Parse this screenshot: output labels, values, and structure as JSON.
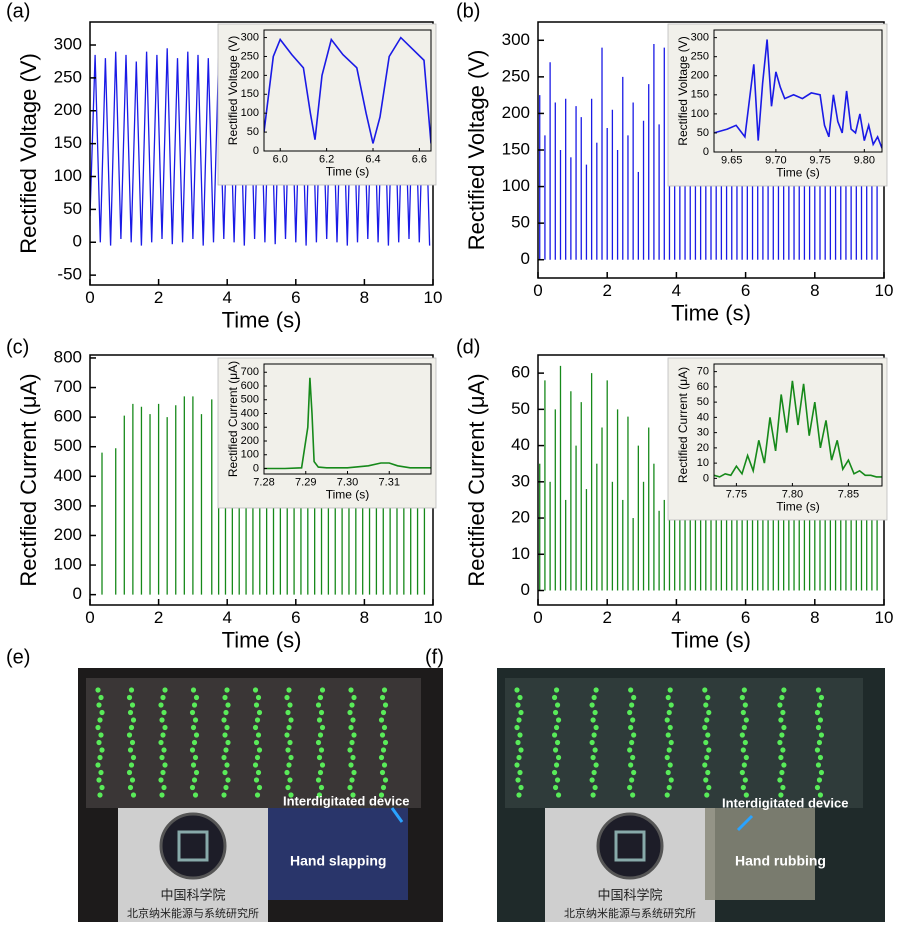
{
  "chart_data": [
    {
      "type": "line",
      "title": "(a)",
      "x_label": "Time (s)",
      "y_label": "Rectified Voltage (V)",
      "color": "#1a1ae6",
      "xlim": [
        0,
        10
      ],
      "ylim": [
        -65,
        335
      ],
      "xticks": [
        0,
        2,
        4,
        6,
        8,
        10
      ],
      "yticks": [
        -50,
        0,
        50,
        100,
        150,
        200,
        250,
        300
      ],
      "x": [
        0,
        0.15,
        0.3,
        0.45,
        0.6,
        0.75,
        0.9,
        1.05,
        1.2,
        1.35,
        1.5,
        1.65,
        1.8,
        1.95,
        2.1,
        2.25,
        2.4,
        2.55,
        2.7,
        2.85,
        3.0,
        3.15,
        3.3,
        3.45,
        3.6,
        3.75,
        3.9,
        4.05,
        4.2,
        4.35,
        4.5,
        4.65,
        4.8,
        4.95,
        5.1,
        5.25,
        5.4,
        5.55,
        5.7,
        5.85,
        6.0,
        6.15,
        6.3,
        6.45,
        6.6,
        6.75,
        6.9,
        7.05,
        7.2,
        7.35,
        7.5,
        7.65,
        7.8,
        7.95,
        8.1,
        8.25,
        8.4,
        8.55,
        8.7,
        8.85,
        9.0,
        9.15,
        9.3,
        9.45,
        9.6,
        9.75,
        9.9
      ],
      "values": [
        40,
        285,
        0,
        280,
        -5,
        290,
        5,
        285,
        0,
        275,
        -5,
        290,
        0,
        285,
        5,
        295,
        -3,
        280,
        0,
        290,
        5,
        285,
        -5,
        280,
        0,
        280,
        5,
        285,
        0,
        280,
        -5,
        285,
        5,
        280,
        0,
        285,
        -3,
        280,
        5,
        285,
        0,
        280,
        -5,
        285,
        0,
        280,
        5,
        285,
        0,
        280,
        -5,
        285,
        0,
        280,
        5,
        285,
        0,
        280,
        -5,
        285,
        0,
        280,
        5,
        285,
        0,
        280,
        -5
      ],
      "inset": {
        "type": "line",
        "x_label": "Time (s)",
        "y_label": "Rectified Voltage (V)",
        "color": "#1a1ae6",
        "xlim": [
          5.93,
          6.65
        ],
        "ylim": [
          0,
          320
        ],
        "xticks": [
          {
            "value": 6,
            "label": "6.0"
          },
          6.2,
          6.4,
          6.6
        ],
        "yticks": [
          0,
          50,
          100,
          150,
          200,
          250,
          300
        ],
        "x": [
          5.93,
          5.97,
          6.0,
          6.05,
          6.1,
          6.13,
          6.15,
          6.18,
          6.22,
          6.27,
          6.33,
          6.37,
          6.4,
          6.43,
          6.47,
          6.52,
          6.57,
          6.62,
          6.65
        ],
        "values": [
          50,
          250,
          295,
          255,
          220,
          100,
          30,
          200,
          295,
          255,
          220,
          100,
          20,
          90,
          250,
          300,
          270,
          240,
          20
        ]
      }
    },
    {
      "type": "stem",
      "title": "(b)",
      "x_label": "Time (s)",
      "y_label": "Rectified Voltage (V)",
      "color": "#1a1ae6",
      "xlim": [
        0,
        10
      ],
      "ylim": [
        -25,
        325
      ],
      "xticks": [
        0,
        2,
        4,
        6,
        8,
        10
      ],
      "yticks": [
        0,
        50,
        100,
        150,
        200,
        250,
        300
      ],
      "x": [
        0.05,
        0.2,
        0.35,
        0.5,
        0.65,
        0.8,
        0.95,
        1.1,
        1.25,
        1.4,
        1.55,
        1.7,
        1.85,
        2.0,
        2.15,
        2.3,
        2.45,
        2.6,
        2.75,
        2.9,
        3.05,
        3.2,
        3.35,
        3.5,
        3.65,
        3.8,
        3.95,
        4.1,
        4.25,
        4.4,
        4.55,
        4.7,
        4.85,
        5.0,
        5.15,
        5.3,
        5.45,
        5.6,
        5.75,
        5.9,
        6.05,
        6.2,
        6.35,
        6.5,
        6.65,
        6.8,
        6.95,
        7.1,
        7.25,
        7.4,
        7.55,
        7.7,
        7.85,
        8.0,
        8.15,
        8.3,
        8.45,
        8.6,
        8.75,
        8.9,
        9.05,
        9.2,
        9.35,
        9.5,
        9.65,
        9.8
      ],
      "values": [
        225,
        170,
        270,
        215,
        150,
        220,
        140,
        210,
        195,
        130,
        220,
        160,
        290,
        180,
        205,
        150,
        250,
        170,
        215,
        120,
        190,
        240,
        295,
        185,
        290,
        180,
        150,
        200,
        170,
        190,
        160,
        210,
        175,
        185,
        150,
        200,
        170,
        190,
        165,
        205,
        180,
        150,
        195,
        170,
        185,
        160,
        200,
        175,
        190,
        155,
        210,
        180,
        165,
        195,
        170,
        185,
        150,
        200,
        175,
        190,
        160,
        180,
        200,
        175,
        165,
        190
      ],
      "inset": {
        "type": "line",
        "x_label": "Time (s)",
        "y_label": "Rectified Voltage (V)",
        "color": "#1a1ae6",
        "xlim": [
          9.63,
          9.82
        ],
        "ylim": [
          0,
          320
        ],
        "xticks": [
          9.65,
          {
            "value": 9.7,
            "label": "9.70"
          },
          9.75,
          {
            "value": 9.8,
            "label": "9.80"
          }
        ],
        "yticks": [
          0,
          50,
          100,
          150,
          200,
          250,
          300
        ],
        "x": [
          9.63,
          9.645,
          9.655,
          9.665,
          9.675,
          9.68,
          9.685,
          9.69,
          9.695,
          9.7,
          9.705,
          9.71,
          9.72,
          9.73,
          9.74,
          9.75,
          9.755,
          9.76,
          9.765,
          9.77,
          9.775,
          9.78,
          9.785,
          9.79,
          9.795,
          9.8,
          9.805,
          9.81,
          9.815,
          9.82
        ],
        "values": [
          50,
          60,
          70,
          40,
          230,
          30,
          180,
          295,
          120,
          210,
          170,
          140,
          150,
          140,
          155,
          150,
          70,
          40,
          150,
          80,
          50,
          160,
          60,
          50,
          100,
          30,
          70,
          20,
          40,
          10
        ]
      }
    },
    {
      "type": "stem",
      "title": "(c)",
      "x_label": "Time (s)",
      "y_label": "Rectified Current (μA)",
      "color": "#16891a",
      "xlim": [
        0,
        10
      ],
      "ylim": [
        -35,
        810
      ],
      "xticks": [
        0,
        2,
        4,
        6,
        8,
        10
      ],
      "yticks": [
        0,
        100,
        200,
        300,
        400,
        500,
        600,
        700,
        800
      ],
      "x": [
        0.35,
        0.75,
        1.0,
        1.25,
        1.5,
        1.75,
        2.0,
        2.25,
        2.5,
        2.75,
        3.0,
        3.25,
        3.55,
        3.75,
        3.95,
        4.15,
        4.35,
        4.55,
        4.75,
        4.95,
        5.15,
        5.35,
        5.55,
        5.75,
        5.95,
        6.15,
        6.35,
        6.55,
        6.75,
        6.95,
        7.15,
        7.35,
        7.55,
        7.75,
        7.95,
        8.15,
        8.35,
        8.55,
        8.75,
        8.95,
        9.15,
        9.35,
        9.55,
        9.75
      ],
      "values": [
        480,
        495,
        605,
        645,
        635,
        610,
        645,
        600,
        640,
        670,
        670,
        610,
        660,
        620,
        600,
        640,
        610,
        630,
        590,
        620,
        650,
        600,
        630,
        610,
        640,
        600,
        620,
        650,
        610,
        630,
        600,
        660,
        620,
        610,
        630,
        600,
        640,
        610,
        620,
        600,
        630,
        610,
        590,
        620
      ],
      "inset": {
        "type": "line",
        "x_label": "Time (s)",
        "y_label": "Rectified Current (μA)",
        "color": "#16891a",
        "xlim": [
          7.28,
          7.32
        ],
        "ylim": [
          -40,
          760
        ],
        "xticks": [
          7.28,
          7.29,
          {
            "value": 7.3,
            "label": "7.30"
          },
          7.31
        ],
        "yticks": [
          0,
          100,
          200,
          300,
          400,
          500,
          600,
          700
        ],
        "x": [
          7.28,
          7.285,
          7.289,
          7.2905,
          7.291,
          7.2915,
          7.292,
          7.293,
          7.295,
          7.3,
          7.305,
          7.308,
          7.31,
          7.312,
          7.315,
          7.32
        ],
        "values": [
          0,
          0,
          5,
          300,
          660,
          400,
          50,
          10,
          5,
          5,
          20,
          40,
          40,
          20,
          5,
          5
        ]
      }
    },
    {
      "type": "stem",
      "title": "(d)",
      "x_label": "Time (s)",
      "y_label": "Rectified Current (μA)",
      "color": "#16891a",
      "xlim": [
        0,
        10
      ],
      "ylim": [
        -4,
        65
      ],
      "xticks": [
        0,
        2,
        4,
        6,
        8,
        10
      ],
      "yticks": [
        0,
        10,
        20,
        30,
        40,
        50,
        60
      ],
      "x": [
        0.05,
        0.2,
        0.35,
        0.5,
        0.65,
        0.8,
        0.95,
        1.1,
        1.25,
        1.4,
        1.55,
        1.7,
        1.85,
        2.0,
        2.15,
        2.3,
        2.45,
        2.6,
        2.75,
        2.9,
        3.05,
        3.2,
        3.35,
        3.5,
        3.65,
        3.8,
        3.95,
        4.1,
        4.25,
        4.4,
        4.55,
        4.7,
        4.85,
        5.0,
        5.15,
        5.3,
        5.45,
        5.6,
        5.75,
        5.9,
        6.05,
        6.2,
        6.35,
        6.5,
        6.65,
        6.8,
        6.95,
        7.1,
        7.25,
        7.4,
        7.55,
        7.7,
        7.85,
        8.0,
        8.15,
        8.3,
        8.45,
        8.6,
        8.75,
        8.9,
        9.05,
        9.2,
        9.35,
        9.5,
        9.65,
        9.8
      ],
      "values": [
        35,
        58,
        30,
        50,
        62,
        25,
        55,
        40,
        52,
        28,
        60,
        35,
        45,
        58,
        30,
        50,
        25,
        48,
        20,
        40,
        30,
        45,
        35,
        22,
        25,
        30,
        35,
        28,
        45,
        30,
        40,
        25,
        35,
        30,
        28,
        38,
        30,
        25,
        42,
        30,
        35,
        28,
        40,
        25,
        32,
        38,
        28,
        30,
        45,
        25,
        35,
        30,
        40,
        28,
        35,
        30,
        25,
        38,
        30,
        42,
        28,
        35,
        30,
        25,
        40,
        30
      ],
      "inset": {
        "type": "line",
        "x_label": "Time (s)",
        "y_label": "Rectified Current (μA)",
        "color": "#16891a",
        "xlim": [
          7.73,
          7.88
        ],
        "ylim": [
          -5,
          75
        ],
        "xticks": [
          7.75,
          {
            "value": 7.8,
            "label": "7.80"
          },
          7.85
        ],
        "yticks": [
          0,
          10,
          20,
          30,
          40,
          50,
          60,
          70
        ],
        "x": [
          7.73,
          7.735,
          7.74,
          7.745,
          7.75,
          7.755,
          7.76,
          7.765,
          7.77,
          7.775,
          7.78,
          7.785,
          7.79,
          7.795,
          7.8,
          7.805,
          7.81,
          7.815,
          7.82,
          7.825,
          7.83,
          7.835,
          7.84,
          7.845,
          7.85,
          7.855,
          7.86,
          7.865,
          7.87,
          7.875,
          7.88
        ],
        "values": [
          2,
          1,
          3,
          2,
          8,
          3,
          15,
          5,
          25,
          10,
          40,
          18,
          55,
          30,
          64,
          35,
          62,
          28,
          50,
          20,
          38,
          12,
          25,
          6,
          12,
          3,
          5,
          2,
          2,
          1,
          1
        ]
      }
    }
  ],
  "photos": [
    {
      "label": "(e)",
      "device_label": "Interdigitated device",
      "action_label": "Hand slapping",
      "logo_text": [
        "中国科学院",
        "北京纳米能源与系统研究所"
      ]
    },
    {
      "label": "(f)",
      "device_label": "Interdigitated device",
      "action_label": "Hand rubbing",
      "logo_text": [
        "中国科学院",
        "北京纳米能源与系统研究所"
      ]
    }
  ]
}
